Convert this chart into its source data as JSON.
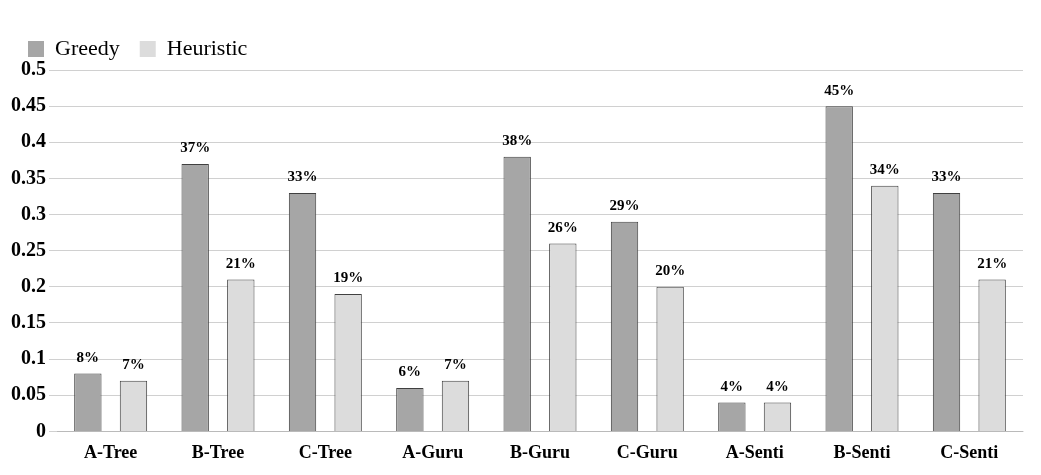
{
  "chart_data": {
    "type": "bar",
    "categories": [
      "A-Tree",
      "B-Tree",
      "C-Tree",
      "A-Guru",
      "B-Guru",
      "C-Guru",
      "A-Senti",
      "B-Senti",
      "C-Senti"
    ],
    "series": [
      {
        "name": "Greedy",
        "color": "#a6a6a6",
        "values": [
          0.08,
          0.37,
          0.33,
          0.06,
          0.38,
          0.29,
          0.04,
          0.45,
          0.33
        ],
        "value_labels": [
          "8%",
          "37%",
          "33%",
          "6%",
          "38%",
          "29%",
          "4%",
          "45%",
          "33%"
        ]
      },
      {
        "name": "Heuristic",
        "color": "#dcdcdc",
        "values": [
          0.07,
          0.21,
          0.19,
          0.07,
          0.26,
          0.2,
          0.04,
          0.34,
          0.21
        ],
        "value_labels": [
          "7%",
          "21%",
          "19%",
          "7%",
          "26%",
          "20%",
          "4%",
          "34%",
          "21%"
        ]
      }
    ],
    "ylim": [
      0,
      0.5
    ],
    "yticks": [
      0,
      0.05,
      0.1,
      0.15,
      0.2,
      0.25,
      0.3,
      0.35,
      0.4,
      0.45,
      0.5
    ],
    "grid": "y",
    "legend": "top left"
  }
}
